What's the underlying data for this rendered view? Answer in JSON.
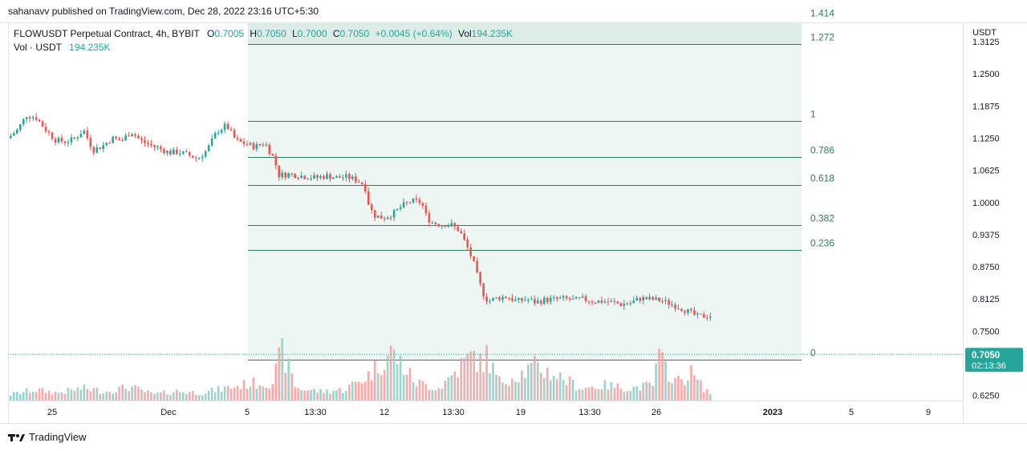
{
  "header": {
    "published_by": "sahanavv published on TradingView.com, Dec 28, 2022 23:16 UTC+5:30"
  },
  "legend": {
    "symbol": "FLOWUSDT Perpetual Contract, 4h, BYBIT",
    "open_label": "O",
    "open": "0.7005",
    "high_label": "H",
    "high": "0.7050",
    "low_label": "L",
    "low": "0.7000",
    "close_label": "C",
    "close": "0.7050",
    "change": "+0.0045 (+0.64%)",
    "vol_label": "Vol",
    "vol": "194.235K",
    "vol_series_label": "Vol · USDT",
    "vol_series_value": "194.235K"
  },
  "footer": {
    "brand": "TradingView"
  },
  "colors": {
    "up": "#26a69a",
    "down": "#ef5350",
    "up_vol": "#8fcfc8",
    "down_vol": "#f2a3a2",
    "fib_line": "#2e7d5b",
    "fib_fill": "#eef6f3",
    "fib_fill_top": "#dcece6",
    "price_tag": "#26a69a"
  },
  "chart_data": {
    "type": "candlestick",
    "symbol": "FLOWUSDT Perpetual Contract",
    "interval": "4h",
    "exchange": "BYBIT",
    "price_axis_unit": "USDT",
    "y_ticks": [
      "1.3125",
      "1.2500",
      "1.1875",
      "1.1250",
      "1.0625",
      "1.0000",
      "0.9375",
      "0.8750",
      "0.8125",
      "0.7500",
      "0.6250"
    ],
    "ylim": [
      0.615,
      1.35
    ],
    "x_ticks": [
      "25",
      "Dec",
      "5",
      "13:30",
      "12",
      "13:30",
      "19",
      "13:30",
      "26",
      "2023",
      "5",
      "9"
    ],
    "last_price": "0.7050",
    "countdown": "02:13:36",
    "fib_levels": [
      {
        "label": "1.414",
        "price": 1.3547
      },
      {
        "label": "1.272",
        "price": 1.3078
      },
      {
        "label": "1",
        "price": 1.159
      },
      {
        "label": "0.786",
        "price": 1.0887
      },
      {
        "label": "0.618",
        "price": 1.0335
      },
      {
        "label": "0.382",
        "price": 0.9561
      },
      {
        "label": "0.236",
        "price": 0.9081
      },
      {
        "label": "0",
        "price": 0.695
      }
    ],
    "price_path": [
      [
        0,
        1.125
      ],
      [
        4,
        1.14
      ],
      [
        8,
        1.17
      ],
      [
        12,
        1.165
      ],
      [
        16,
        1.142
      ],
      [
        20,
        1.122
      ],
      [
        24,
        1.118
      ],
      [
        28,
        1.123
      ],
      [
        32,
        1.141
      ],
      [
        36,
        1.102
      ],
      [
        40,
        1.11
      ],
      [
        44,
        1.125
      ],
      [
        48,
        1.12
      ],
      [
        52,
        1.138
      ],
      [
        56,
        1.12
      ],
      [
        60,
        1.112
      ],
      [
        64,
        1.105
      ],
      [
        68,
        1.097
      ],
      [
        72,
        1.098
      ],
      [
        76,
        1.092
      ],
      [
        80,
        1.085
      ],
      [
        84,
        1.103
      ],
      [
        88,
        1.138
      ],
      [
        92,
        1.15
      ],
      [
        96,
        1.12
      ],
      [
        100,
        1.114
      ],
      [
        104,
        1.108
      ],
      [
        108,
        1.117
      ],
      [
        112,
        1.085
      ],
      [
        114,
        1.053
      ],
      [
        118,
        1.055
      ],
      [
        122,
        1.053
      ],
      [
        126,
        1.05
      ],
      [
        130,
        1.048
      ],
      [
        134,
        1.052
      ],
      [
        138,
        1.048
      ],
      [
        142,
        1.05
      ],
      [
        146,
        1.045
      ],
      [
        150,
        1.035
      ],
      [
        152,
        0.993
      ],
      [
        154,
        0.975
      ],
      [
        158,
        0.97
      ],
      [
        162,
        0.978
      ],
      [
        166,
        0.994
      ],
      [
        170,
        1.003
      ],
      [
        174,
        1.0
      ],
      [
        176,
        0.973
      ],
      [
        178,
        0.962
      ],
      [
        182,
        0.957
      ],
      [
        186,
        0.958
      ],
      [
        190,
        0.945
      ],
      [
        192,
        0.925
      ],
      [
        194,
        0.905
      ],
      [
        196,
        0.88
      ],
      [
        198,
        0.848
      ],
      [
        200,
        0.822
      ],
      [
        202,
        0.808
      ],
      [
        206,
        0.815
      ],
      [
        210,
        0.817
      ],
      [
        214,
        0.808
      ],
      [
        218,
        0.812
      ],
      [
        222,
        0.806
      ],
      [
        226,
        0.811
      ],
      [
        230,
        0.812
      ],
      [
        234,
        0.813
      ],
      [
        238,
        0.81
      ],
      [
        242,
        0.812
      ],
      [
        246,
        0.808
      ],
      [
        250,
        0.808
      ],
      [
        254,
        0.806
      ],
      [
        258,
        0.802
      ],
      [
        262,
        0.805
      ],
      [
        266,
        0.814
      ],
      [
        270,
        0.812
      ],
      [
        274,
        0.81
      ],
      [
        278,
        0.804
      ],
      [
        282,
        0.797
      ],
      [
        286,
        0.788
      ],
      [
        290,
        0.778
      ],
      [
        294,
        0.78
      ]
    ],
    "volume_path": [
      [
        0,
        20
      ],
      [
        10,
        35
      ],
      [
        20,
        25
      ],
      [
        30,
        40
      ],
      [
        40,
        30
      ],
      [
        50,
        45
      ],
      [
        60,
        20
      ],
      [
        70,
        30
      ],
      [
        80,
        25
      ],
      [
        90,
        40
      ],
      [
        100,
        55
      ],
      [
        110,
        60
      ],
      [
        114,
        160
      ],
      [
        120,
        40
      ],
      [
        130,
        30
      ],
      [
        140,
        35
      ],
      [
        150,
        80
      ],
      [
        160,
        160
      ],
      [
        170,
        60
      ],
      [
        180,
        40
      ],
      [
        190,
        120
      ],
      [
        195,
        150
      ],
      [
        198,
        110
      ],
      [
        200,
        150
      ],
      [
        205,
        60
      ],
      [
        215,
        90
      ],
      [
        220,
        110
      ],
      [
        230,
        80
      ],
      [
        240,
        40
      ],
      [
        250,
        50
      ],
      [
        260,
        40
      ],
      [
        270,
        50
      ],
      [
        272,
        140
      ],
      [
        280,
        60
      ],
      [
        286,
        90
      ],
      [
        290,
        50
      ],
      [
        294,
        25
      ]
    ]
  }
}
